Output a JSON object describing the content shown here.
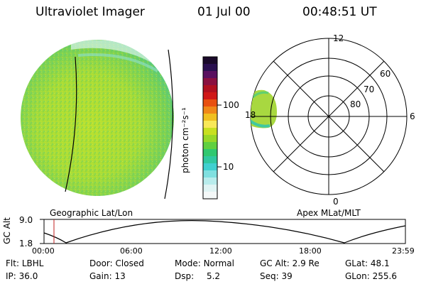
{
  "header": {
    "instrument": "Ultraviolet Imager",
    "date": "01 Jul 00",
    "time": "00:48:51 UT"
  },
  "colorbar": {
    "unit_label": "photon cm⁻²s⁻¹",
    "tick_labels": [
      "100",
      "10"
    ],
    "colors": [
      "#1a0a2a",
      "#2a1050",
      "#5a1060",
      "#8a1040",
      "#b01020",
      "#d01818",
      "#e85010",
      "#f08818",
      "#f0c020",
      "#f8e858",
      "#c8e020",
      "#98d828",
      "#60d040",
      "#30c870",
      "#30c8a0",
      "#40d0d0",
      "#80e0e0",
      "#b8ecec",
      "#e0f4f4",
      "#f4f8f8"
    ]
  },
  "left_panel": {
    "label": "Geographic Lat/Lon"
  },
  "polar_plot": {
    "label": "Apex MLat/MLT",
    "mlt_labels": {
      "top": "12",
      "right": "6",
      "bottom": "0",
      "left": "18"
    },
    "lat_labels": [
      "60",
      "70",
      "80"
    ]
  },
  "altitude_plot": {
    "ylabel": "GC Alt",
    "yticks": [
      "9.0",
      "1.8"
    ],
    "xticks": [
      "00:00",
      "06:00",
      "12:00",
      "18:00",
      "23:59"
    ]
  },
  "info": {
    "flt_label": "Flt:",
    "flt_value": "LBHL",
    "ip_label": "IP:",
    "ip_value": "36.0",
    "door_label": "Door:",
    "door_value": "Closed",
    "gain_label": "Gain:",
    "gain_value": "13",
    "mode_label": "Mode:",
    "mode_value": "Normal",
    "dsp_label": "Dsp:",
    "dsp_value": "5.2",
    "gcalt_label": "GC Alt:",
    "gcalt_value": "2.9 Re",
    "seq_label": "Seq:",
    "seq_value": "39",
    "glat_label": "GLat:",
    "glat_value": "48.1",
    "glon_label": "GLon:",
    "glon_value": "255.6"
  }
}
